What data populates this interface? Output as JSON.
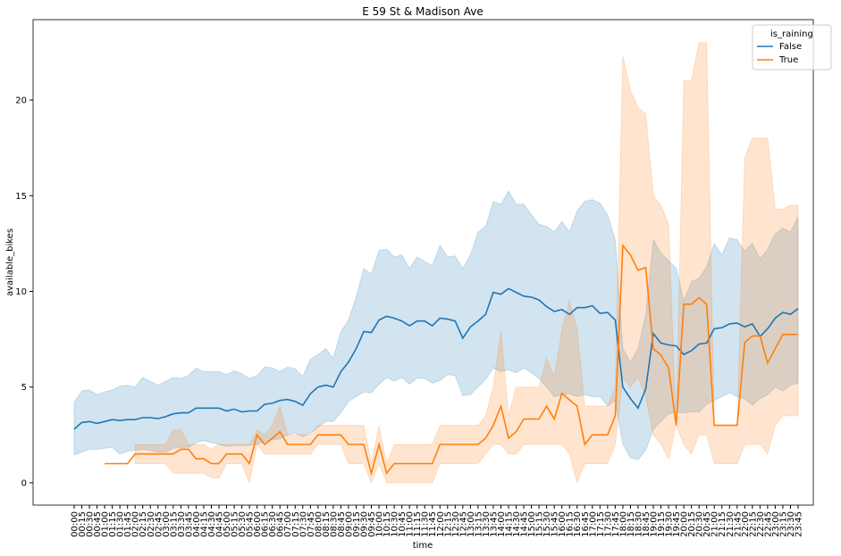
{
  "chart_data": {
    "type": "line",
    "title": "E 59 St & Madison Ave",
    "x_label": "time",
    "y_label": "available_bikes",
    "legend_title": "is_raining",
    "legend_position": "upper right",
    "categories": [
      "00:00",
      "00:15",
      "00:30",
      "00:45",
      "01:00",
      "01:15",
      "01:30",
      "01:45",
      "02:00",
      "02:15",
      "02:30",
      "02:45",
      "03:00",
      "03:15",
      "03:30",
      "03:45",
      "04:00",
      "04:15",
      "04:30",
      "04:45",
      "05:00",
      "05:15",
      "05:30",
      "05:45",
      "06:00",
      "06:15",
      "06:30",
      "06:45",
      "07:00",
      "07:15",
      "07:30",
      "07:45",
      "08:00",
      "08:15",
      "08:30",
      "08:45",
      "09:00",
      "09:15",
      "09:30",
      "09:45",
      "10:00",
      "10:15",
      "10:30",
      "10:45",
      "11:00",
      "11:15",
      "11:30",
      "11:45",
      "12:00",
      "12:15",
      "12:30",
      "12:45",
      "13:00",
      "13:15",
      "13:30",
      "13:45",
      "14:00",
      "14:15",
      "14:30",
      "14:45",
      "15:00",
      "15:15",
      "15:30",
      "15:45",
      "16:00",
      "16:15",
      "16:30",
      "16:45",
      "17:00",
      "17:15",
      "17:30",
      "17:45",
      "18:00",
      "18:15",
      "18:30",
      "18:45",
      "19:00",
      "19:15",
      "19:30",
      "19:45",
      "20:00",
      "20:15",
      "20:30",
      "20:45",
      "21:00",
      "21:15",
      "21:30",
      "21:45",
      "22:00",
      "22:15",
      "22:30",
      "22:45",
      "23:00",
      "23:15",
      "23:30",
      "23:45"
    ],
    "ylim": [
      -1.17,
      24.2
    ],
    "yticks": [
      0,
      5,
      10,
      15,
      20
    ],
    "series": [
      {
        "name": "False",
        "color": "#1f77b4",
        "values": [
          2.8,
          3.15,
          3.2,
          3.1,
          3.2,
          3.3,
          3.25,
          3.3,
          3.3,
          3.4,
          3.4,
          3.35,
          3.45,
          3.6,
          3.65,
          3.65,
          3.9,
          3.9,
          3.9,
          3.9,
          3.75,
          3.85,
          3.7,
          3.75,
          3.75,
          4.1,
          4.15,
          4.3,
          4.35,
          4.25,
          4.05,
          4.65,
          5.0,
          5.1,
          5.0,
          5.8,
          6.3,
          7.0,
          7.9,
          7.85,
          8.5,
          8.7,
          8.6,
          8.45,
          8.2,
          8.45,
          8.45,
          8.2,
          8.6,
          8.55,
          8.45,
          7.55,
          8.15,
          8.45,
          8.8,
          9.95,
          9.85,
          10.15,
          9.95,
          9.75,
          9.7,
          9.55,
          9.2,
          8.95,
          9.05,
          8.8,
          9.15,
          9.15,
          9.25,
          8.85,
          8.9,
          8.5,
          5.0,
          4.4,
          3.9,
          4.9,
          7.8,
          7.3,
          7.2,
          7.15,
          6.7,
          6.9,
          7.25,
          7.3,
          8.05,
          8.1,
          8.3,
          8.35,
          8.15,
          8.3,
          7.65,
          8.05,
          8.6,
          8.9,
          8.8,
          9.1
        ],
        "upper": [
          4.2,
          4.8,
          4.85,
          4.6,
          4.75,
          4.85,
          5.05,
          5.1,
          5.0,
          5.5,
          5.3,
          5.1,
          5.3,
          5.5,
          5.45,
          5.6,
          6.0,
          5.8,
          5.8,
          5.8,
          5.65,
          5.85,
          5.7,
          5.45,
          5.6,
          6.05,
          6.0,
          5.8,
          6.05,
          5.95,
          5.55,
          6.45,
          6.7,
          7.0,
          6.5,
          7.9,
          8.5,
          9.7,
          11.2,
          10.9,
          12.15,
          12.2,
          11.8,
          11.9,
          11.2,
          11.8,
          11.55,
          11.35,
          12.4,
          11.8,
          11.85,
          11.2,
          11.9,
          13.1,
          13.4,
          14.7,
          14.55,
          15.25,
          14.55,
          14.55,
          14.0,
          13.5,
          13.4,
          13.1,
          13.65,
          13.1,
          14.2,
          14.7,
          14.8,
          14.6,
          14.0,
          12.7,
          7.0,
          6.3,
          7.0,
          8.8,
          12.7,
          12.0,
          11.6,
          11.2,
          9.5,
          10.5,
          10.7,
          11.3,
          12.5,
          11.9,
          12.8,
          12.7,
          12.1,
          12.5,
          11.7,
          12.2,
          13.0,
          13.3,
          13.1,
          13.9
        ],
        "lower": [
          1.45,
          1.6,
          1.75,
          1.75,
          1.8,
          1.85,
          1.5,
          1.65,
          1.7,
          1.75,
          1.7,
          1.6,
          1.6,
          1.8,
          1.85,
          1.85,
          2.1,
          2.2,
          2.1,
          2.0,
          1.9,
          1.95,
          1.95,
          1.95,
          2.0,
          2.15,
          2.25,
          2.3,
          2.5,
          2.6,
          2.4,
          2.6,
          2.9,
          3.2,
          3.2,
          3.65,
          4.25,
          4.5,
          4.75,
          4.7,
          5.15,
          5.5,
          5.3,
          5.5,
          5.15,
          5.45,
          5.45,
          5.2,
          5.35,
          5.65,
          5.6,
          4.55,
          4.6,
          5.0,
          5.4,
          6.0,
          5.8,
          5.9,
          5.75,
          6.0,
          5.75,
          5.45,
          5.0,
          4.5,
          4.6,
          4.65,
          4.5,
          4.6,
          4.5,
          4.5,
          4.0,
          4.3,
          2.0,
          1.3,
          1.2,
          1.7,
          2.8,
          3.2,
          3.6,
          3.7,
          3.65,
          3.7,
          3.7,
          4.1,
          4.3,
          4.5,
          4.7,
          4.5,
          4.4,
          4.05,
          4.4,
          4.6,
          5.0,
          4.8,
          5.1,
          5.2
        ]
      },
      {
        "name": "True",
        "color": "#ff7f0e",
        "values": [
          null,
          null,
          null,
          null,
          1.0,
          1.0,
          1.0,
          1.0,
          1.5,
          1.5,
          1.5,
          1.5,
          1.5,
          1.5,
          1.75,
          1.75,
          1.25,
          1.25,
          1.0,
          1.0,
          1.5,
          1.5,
          1.5,
          1.0,
          2.5,
          2.0,
          2.33,
          2.67,
          2.0,
          2.0,
          2.0,
          2.0,
          2.5,
          2.5,
          2.5,
          2.5,
          2.0,
          2.0,
          2.0,
          0.5,
          2.0,
          0.5,
          1.0,
          1.0,
          1.0,
          1.0,
          1.0,
          1.0,
          2.0,
          2.0,
          2.0,
          2.0,
          2.0,
          2.0,
          2.33,
          3.0,
          4.0,
          2.33,
          2.67,
          3.33,
          3.33,
          3.33,
          4.0,
          3.33,
          4.67,
          4.33,
          4.0,
          2.0,
          2.5,
          2.5,
          2.5,
          3.5,
          12.4,
          11.9,
          11.1,
          11.25,
          7.0,
          6.67,
          6.0,
          3.0,
          9.33,
          9.33,
          9.67,
          9.33,
          3.0,
          3.0,
          3.0,
          3.0,
          7.33,
          7.67,
          7.67,
          6.25,
          7.0,
          7.75,
          7.75,
          7.75
        ],
        "upper": [
          null,
          null,
          null,
          null,
          null,
          null,
          null,
          null,
          2.0,
          2.0,
          2.0,
          2.0,
          2.0,
          2.75,
          2.75,
          2.0,
          2.0,
          2.0,
          1.75,
          2.0,
          2.0,
          2.0,
          2.0,
          2.0,
          2.75,
          2.5,
          3.0,
          4.0,
          2.5,
          2.5,
          2.5,
          2.5,
          3.0,
          3.0,
          3.0,
          3.0,
          3.0,
          3.0,
          3.0,
          1.0,
          3.0,
          1.0,
          2.0,
          2.0,
          2.0,
          2.0,
          2.0,
          2.0,
          3.0,
          3.0,
          3.0,
          3.0,
          3.0,
          3.0,
          3.5,
          5.0,
          8.0,
          3.5,
          5.0,
          5.0,
          5.0,
          5.0,
          6.5,
          5.5,
          8.0,
          9.5,
          8.0,
          4.0,
          4.0,
          4.0,
          4.0,
          5.0,
          22.3,
          20.5,
          19.6,
          19.3,
          15.0,
          14.5,
          13.5,
          3.0,
          21.0,
          21.0,
          23.0,
          23.0,
          3.0,
          3.0,
          3.0,
          3.0,
          17.0,
          18.0,
          18.0,
          18.0,
          14.3,
          14.3,
          14.5,
          14.5
        ],
        "lower": [
          null,
          null,
          null,
          null,
          null,
          null,
          null,
          null,
          1.0,
          1.0,
          1.0,
          1.0,
          1.0,
          0.5,
          0.5,
          0.5,
          0.5,
          0.5,
          0.25,
          0.25,
          1.0,
          1.0,
          1.0,
          0.0,
          2.0,
          1.5,
          1.5,
          1.5,
          1.5,
          1.5,
          1.5,
          1.5,
          2.0,
          2.0,
          2.0,
          2.0,
          1.0,
          1.0,
          1.0,
          0.0,
          1.0,
          0.0,
          0.0,
          0.0,
          0.0,
          0.0,
          0.0,
          0.0,
          1.0,
          1.0,
          1.0,
          1.0,
          1.0,
          1.0,
          1.5,
          2.0,
          2.0,
          1.5,
          1.5,
          2.0,
          2.0,
          2.0,
          2.0,
          2.0,
          2.0,
          1.5,
          0.0,
          1.0,
          1.0,
          1.0,
          1.0,
          2.0,
          5.5,
          5.0,
          5.5,
          4.5,
          2.5,
          2.0,
          1.25,
          3.0,
          2.0,
          1.5,
          2.5,
          2.5,
          1.0,
          1.0,
          1.0,
          1.0,
          2.0,
          2.0,
          2.0,
          1.5,
          3.0,
          3.5,
          3.5,
          3.5
        ]
      }
    ]
  }
}
